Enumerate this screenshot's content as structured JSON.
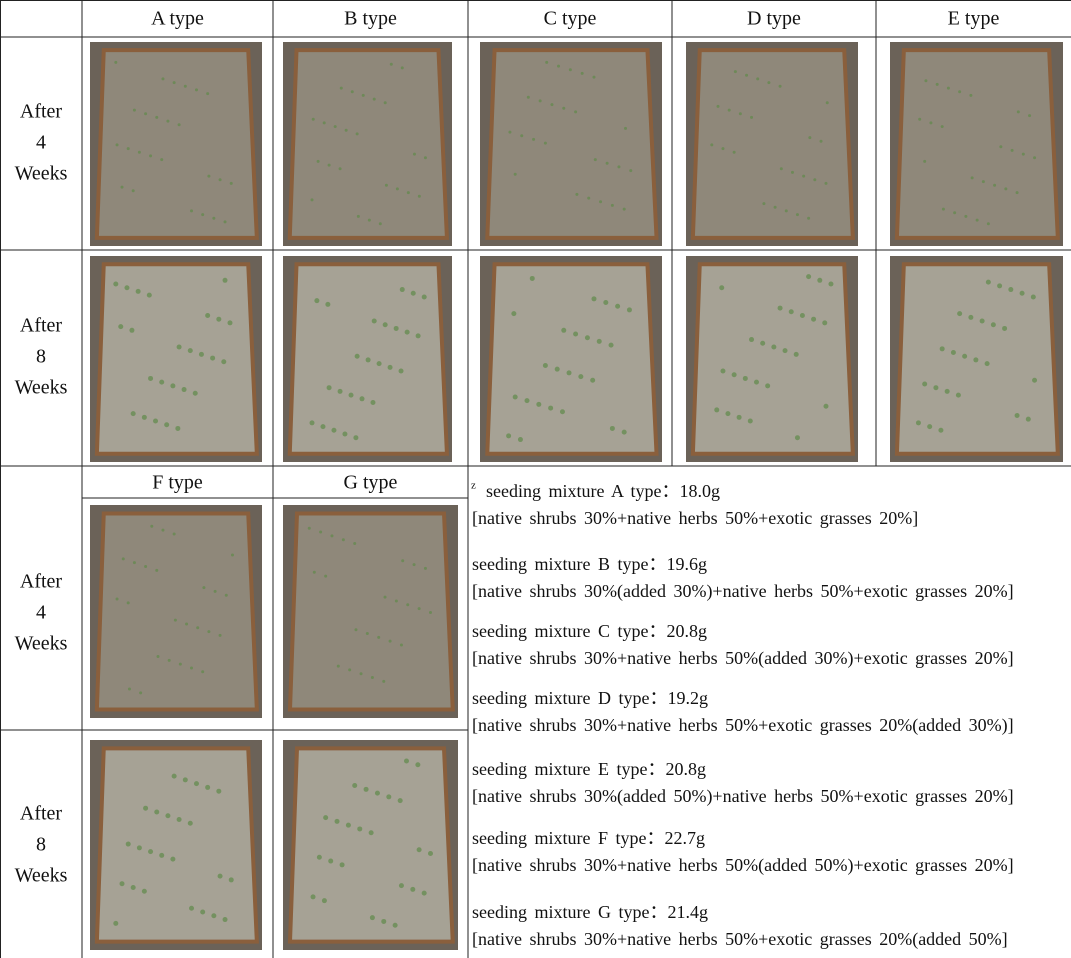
{
  "table": {
    "columns_top": [
      "A type",
      "B type",
      "C type",
      "D type",
      "E type"
    ],
    "columns_bottom": [
      "F type",
      "G type"
    ],
    "row_labels": [
      [
        "After",
        "4",
        "Weeks"
      ],
      [
        "After",
        "8",
        "Weeks"
      ],
      [
        "After",
        "4",
        "Weeks"
      ],
      [
        "After",
        "8",
        "Weeks"
      ]
    ]
  },
  "footnote": {
    "marker": "z",
    "items": [
      {
        "title": "seeding mixture A type：18.0g",
        "composition": "[native shrubs 30%+native herbs 50%+exotic grasses 20%]"
      },
      {
        "title": "seeding mixture B type：19.6g",
        "composition": "[native shrubs 30%(added 30%)+native herbs 50%+exotic grasses 20%]"
      },
      {
        "title": "seeding mixture C type：20.8g",
        "composition": "[native shrubs 30%+native herbs 50%(added 30%)+exotic grasses 20%]"
      },
      {
        "title": "seeding mixture D type：19.2g",
        "composition": "[native shrubs 30%+native herbs 50%+exotic grasses 20%(added 30%)]"
      },
      {
        "title": "seeding mixture E type：20.8g",
        "composition": "[native shrubs 30%(added 50%)+native herbs 50%+exotic grasses 20%]"
      },
      {
        "title": "seeding mixture F type：22.7g",
        "composition": "[native shrubs 30%+native herbs 50%(added 50%)+exotic grasses 20%]"
      },
      {
        "title": "seeding mixture G type：21.4g",
        "composition": "[native shrubs 30%+native herbs 50%+exotic grasses 20%(added 50%]"
      }
    ]
  }
}
